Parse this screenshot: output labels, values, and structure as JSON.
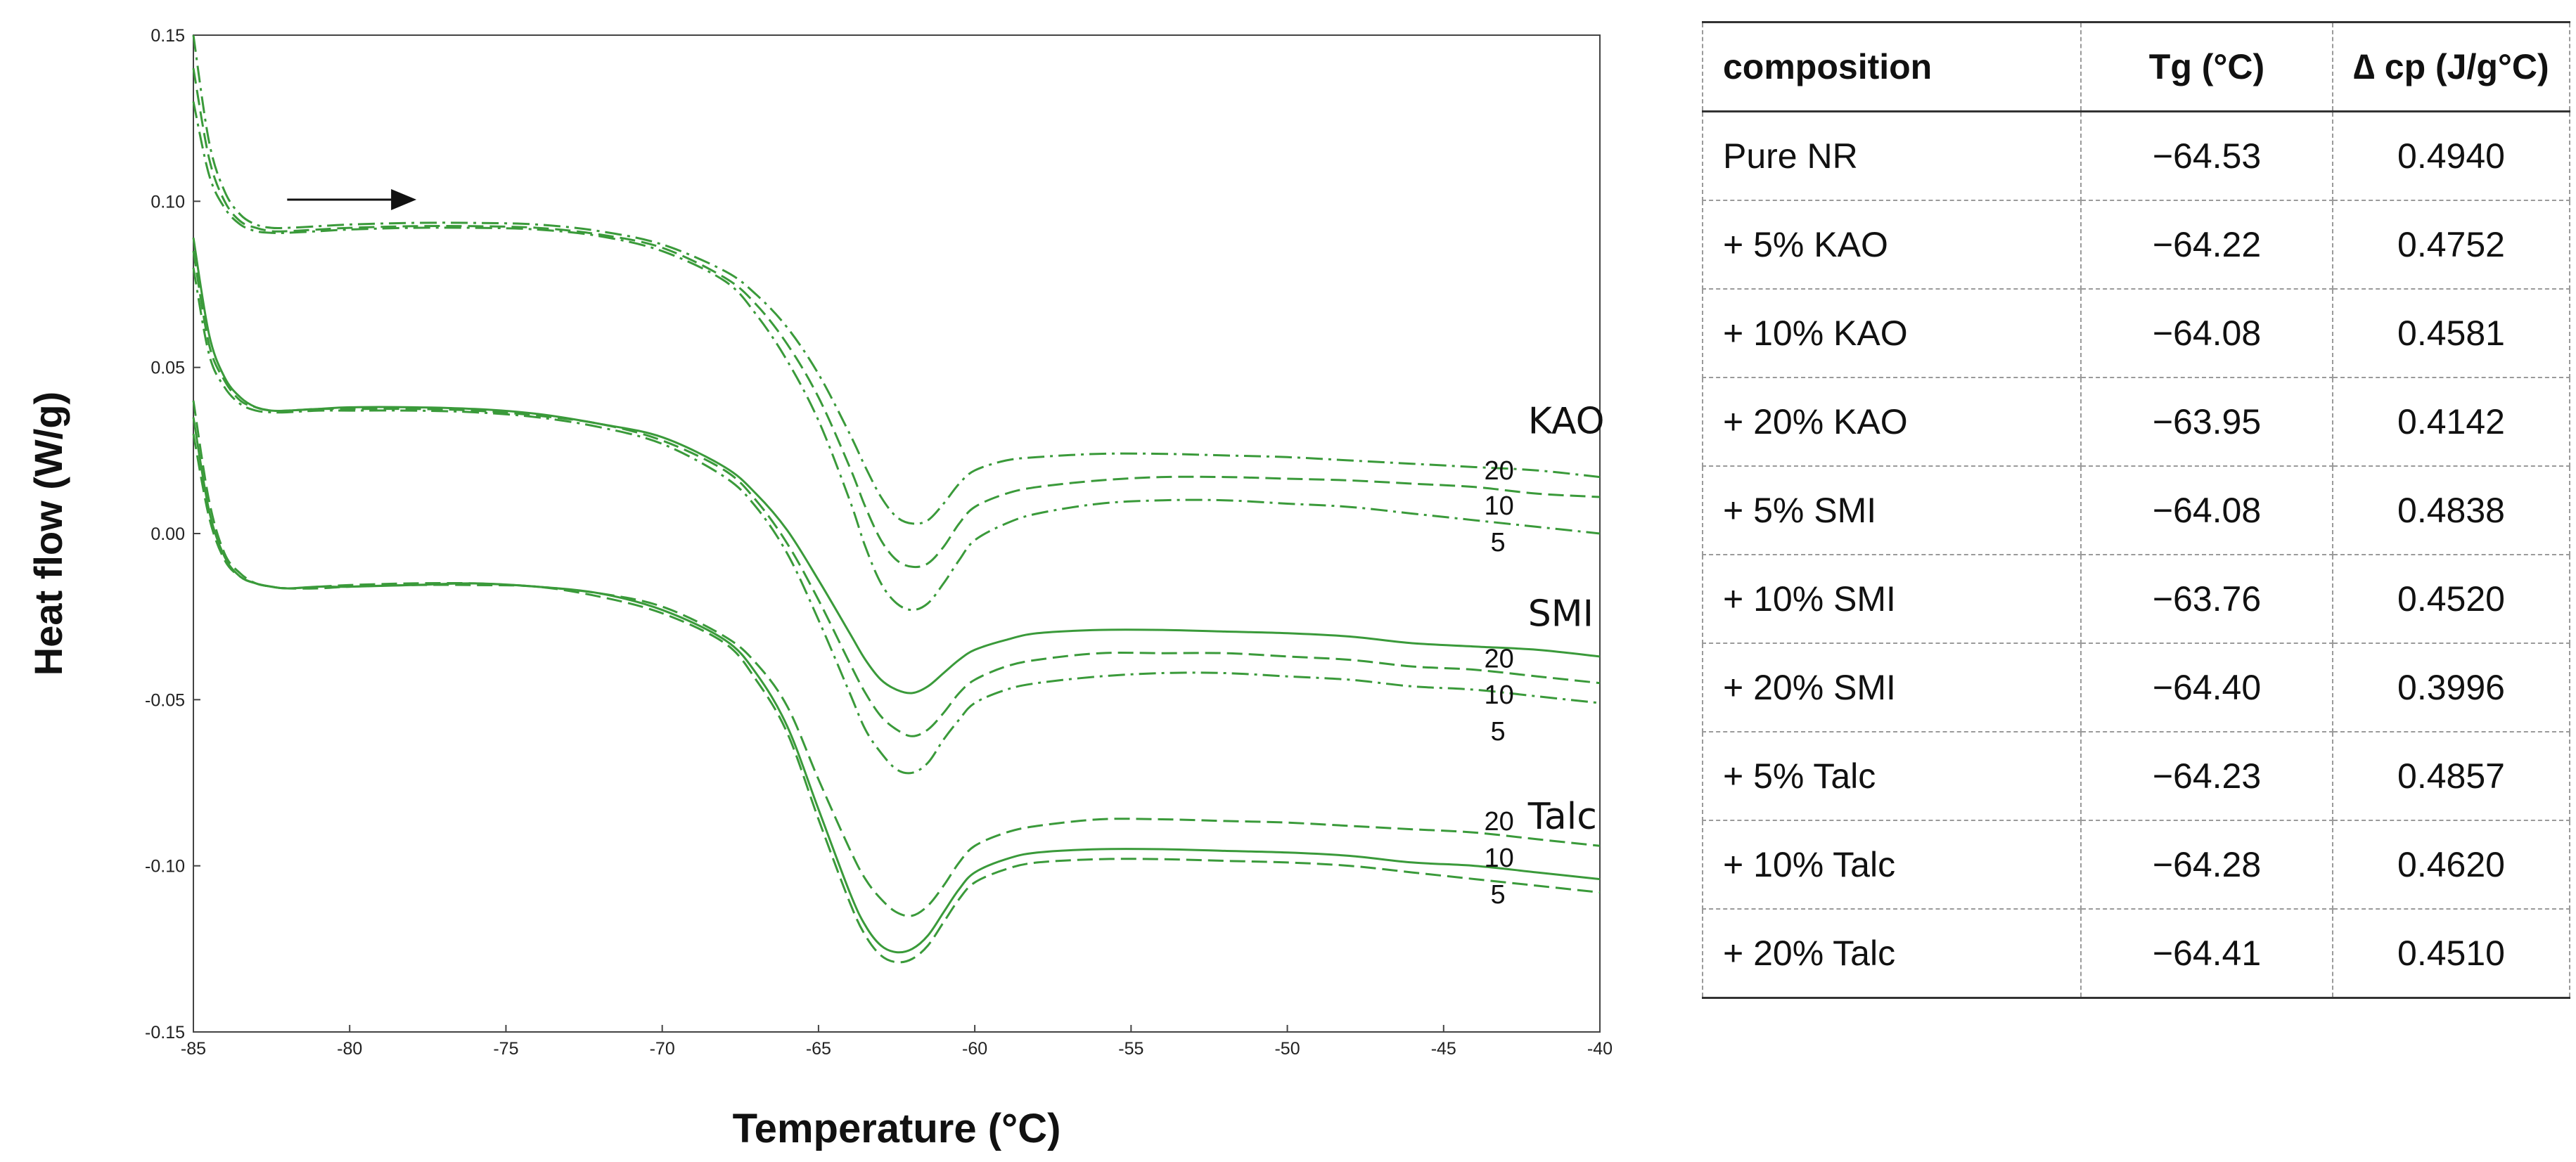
{
  "chart_data": {
    "type": "line",
    "title": "",
    "xlabel": "Temperature (°C)",
    "ylabel": "Heat flow (W/g)",
    "xlim": [
      -85,
      -40
    ],
    "ylim": [
      -0.15,
      0.15
    ],
    "x_ticks": [
      -85,
      -80,
      -75,
      -70,
      -65,
      -60,
      -55,
      -50,
      -45,
      -40
    ],
    "x_tick_labels": [
      "-85",
      "-80",
      "-75",
      "-70",
      "-65",
      "-60",
      "-55",
      "-50",
      "-45",
      "-40"
    ],
    "y_ticks": [
      -0.15,
      -0.1,
      -0.05,
      0.0,
      0.05,
      0.1,
      0.15
    ],
    "y_tick_labels": [
      "-0.15",
      "-0.10",
      "-0.05",
      "0.00",
      "0.05",
      "0.10",
      "0.15"
    ],
    "color": "#3a9a3a",
    "arrow": {
      "x_start": -82,
      "x_end": -78,
      "y": 0.1005
    },
    "groups": [
      {
        "name": "KAO",
        "label_pos": {
          "x": -42.3,
          "y": 0.034
        }
      },
      {
        "name": "SMI",
        "label_pos": {
          "x": -42.3,
          "y": -0.024
        }
      },
      {
        "name": "Talc",
        "label_pos": {
          "x": -42.3,
          "y": -0.085
        }
      }
    ],
    "series": [
      {
        "name": "KAO 20",
        "group": "KAO",
        "dash": "dashdot",
        "x": [
          -85,
          -84.5,
          -84,
          -83.5,
          -83,
          -82.5,
          -82,
          -81,
          -80,
          -78,
          -76,
          -74,
          -72,
          -70,
          -68,
          -67,
          -66,
          -65,
          -64,
          -63.5,
          -63,
          -62.5,
          -62,
          -61.5,
          -61,
          -60.5,
          -60,
          -59,
          -58,
          -56,
          -54,
          -52,
          -50,
          -48,
          -46,
          -44,
          -42,
          -40
        ],
        "y": [
          0.15,
          0.118,
          0.103,
          0.096,
          0.093,
          0.092,
          0.092,
          0.0925,
          0.093,
          0.0935,
          0.0935,
          0.093,
          0.091,
          0.087,
          0.079,
          0.072,
          0.062,
          0.048,
          0.03,
          0.02,
          0.011,
          0.005,
          0.003,
          0.004,
          0.009,
          0.015,
          0.019,
          0.022,
          0.023,
          0.024,
          0.024,
          0.0235,
          0.023,
          0.022,
          0.021,
          0.02,
          0.019,
          0.017
        ]
      },
      {
        "name": "KAO 10",
        "group": "KAO",
        "dash": "longdash",
        "x": [
          -85,
          -84.5,
          -84,
          -83.5,
          -83,
          -82.5,
          -82,
          -81,
          -80,
          -78,
          -76,
          -74,
          -72,
          -70,
          -68,
          -67,
          -66,
          -65,
          -64,
          -63.5,
          -63,
          -62.5,
          -62,
          -61.5,
          -61,
          -60.5,
          -60,
          -59,
          -58,
          -56,
          -54,
          -52,
          -50,
          -48,
          -46,
          -44,
          -42,
          -40
        ],
        "y": [
          0.14,
          0.113,
          0.1,
          0.094,
          0.092,
          0.091,
          0.091,
          0.0915,
          0.092,
          0.0925,
          0.0925,
          0.092,
          0.09,
          0.086,
          0.077,
          0.069,
          0.057,
          0.041,
          0.02,
          0.008,
          -0.002,
          -0.008,
          -0.01,
          -0.009,
          -0.004,
          0.003,
          0.008,
          0.012,
          0.014,
          0.016,
          0.017,
          0.017,
          0.0165,
          0.016,
          0.015,
          0.014,
          0.012,
          0.011
        ]
      },
      {
        "name": "KAO 5",
        "group": "KAO",
        "dash": "dashdot",
        "x": [
          -85,
          -84.5,
          -84,
          -83.5,
          -83,
          -82.5,
          -82,
          -81,
          -80,
          -78,
          -76,
          -74,
          -72,
          -70,
          -68,
          -67,
          -66,
          -65,
          -64,
          -63.5,
          -63,
          -62.5,
          -62,
          -61.5,
          -61,
          -60.5,
          -60,
          -59,
          -58,
          -56,
          -54,
          -52,
          -50,
          -48,
          -46,
          -44,
          -42,
          -40
        ],
        "y": [
          0.13,
          0.108,
          0.098,
          0.093,
          0.091,
          0.0905,
          0.0905,
          0.091,
          0.0915,
          0.092,
          0.092,
          0.0915,
          0.0895,
          0.085,
          0.076,
          0.066,
          0.052,
          0.034,
          0.01,
          -0.004,
          -0.015,
          -0.021,
          -0.023,
          -0.021,
          -0.015,
          -0.008,
          -0.002,
          0.003,
          0.006,
          0.009,
          0.01,
          0.01,
          0.009,
          0.008,
          0.006,
          0.004,
          0.002,
          0.0
        ]
      },
      {
        "name": "SMI 20",
        "group": "SMI",
        "dash": "solid",
        "x": [
          -85,
          -84.5,
          -84,
          -83.5,
          -83,
          -82.5,
          -82,
          -81,
          -80,
          -78,
          -76,
          -74,
          -72,
          -70,
          -68,
          -67,
          -66,
          -65,
          -64,
          -63.5,
          -63,
          -62.5,
          -62,
          -61.5,
          -61,
          -60.5,
          -60,
          -59,
          -58,
          -56,
          -54,
          -52,
          -50,
          -48,
          -46,
          -44,
          -42,
          -40
        ],
        "y": [
          0.089,
          0.06,
          0.047,
          0.041,
          0.038,
          0.037,
          0.037,
          0.0375,
          0.038,
          0.038,
          0.0375,
          0.036,
          0.033,
          0.029,
          0.02,
          0.012,
          0.001,
          -0.014,
          -0.03,
          -0.038,
          -0.044,
          -0.047,
          -0.048,
          -0.046,
          -0.042,
          -0.038,
          -0.035,
          -0.032,
          -0.03,
          -0.029,
          -0.029,
          -0.0295,
          -0.03,
          -0.031,
          -0.033,
          -0.034,
          -0.035,
          -0.037
        ]
      },
      {
        "name": "SMI 10",
        "group": "SMI",
        "dash": "longdash",
        "x": [
          -85,
          -84.5,
          -84,
          -83.5,
          -83,
          -82.5,
          -82,
          -81,
          -80,
          -78,
          -76,
          -74,
          -72,
          -70,
          -68,
          -67,
          -66,
          -65,
          -64,
          -63.5,
          -63,
          -62.5,
          -62,
          -61.5,
          -61,
          -60.5,
          -60,
          -59,
          -58,
          -56,
          -54,
          -52,
          -50,
          -48,
          -46,
          -44,
          -42,
          -40
        ],
        "y": [
          0.085,
          0.057,
          0.046,
          0.04,
          0.038,
          0.037,
          0.037,
          0.0375,
          0.0375,
          0.0375,
          0.037,
          0.0355,
          0.033,
          0.028,
          0.019,
          0.01,
          -0.003,
          -0.02,
          -0.039,
          -0.048,
          -0.055,
          -0.059,
          -0.061,
          -0.059,
          -0.054,
          -0.048,
          -0.044,
          -0.04,
          -0.038,
          -0.036,
          -0.036,
          -0.036,
          -0.037,
          -0.038,
          -0.04,
          -0.041,
          -0.043,
          -0.045
        ]
      },
      {
        "name": "SMI 5",
        "group": "SMI",
        "dash": "dashdot",
        "x": [
          -85,
          -84.5,
          -84,
          -83.5,
          -83,
          -82.5,
          -82,
          -81,
          -80,
          -78,
          -76,
          -74,
          -72,
          -70,
          -68,
          -67,
          -66,
          -65,
          -64,
          -63.5,
          -63,
          -62.5,
          -62,
          -61.5,
          -61,
          -60.5,
          -60,
          -59,
          -58,
          -56,
          -54,
          -52,
          -50,
          -48,
          -46,
          -44,
          -42,
          -40
        ],
        "y": [
          0.08,
          0.054,
          0.044,
          0.039,
          0.037,
          0.0365,
          0.0365,
          0.037,
          0.037,
          0.037,
          0.0365,
          0.035,
          0.032,
          0.027,
          0.017,
          0.008,
          -0.006,
          -0.026,
          -0.048,
          -0.059,
          -0.066,
          -0.071,
          -0.072,
          -0.069,
          -0.062,
          -0.056,
          -0.051,
          -0.047,
          -0.045,
          -0.043,
          -0.042,
          -0.042,
          -0.043,
          -0.044,
          -0.046,
          -0.047,
          -0.049,
          -0.051
        ]
      },
      {
        "name": "Talc 20",
        "group": "Talc",
        "dash": "longdash",
        "x": [
          -85,
          -84.5,
          -84,
          -83.5,
          -83,
          -82.5,
          -82,
          -81,
          -80,
          -78,
          -76,
          -74,
          -72,
          -70,
          -68,
          -67,
          -66,
          -65,
          -64,
          -63.5,
          -63,
          -62.5,
          -62,
          -61.5,
          -61,
          -60.5,
          -60,
          -59,
          -58,
          -56,
          -54,
          -52,
          -50,
          -48,
          -46,
          -44,
          -42,
          -40
        ],
        "y": [
          0.04,
          0.01,
          -0.006,
          -0.012,
          -0.015,
          -0.016,
          -0.0165,
          -0.016,
          -0.0155,
          -0.015,
          -0.015,
          -0.016,
          -0.018,
          -0.022,
          -0.031,
          -0.039,
          -0.052,
          -0.074,
          -0.095,
          -0.104,
          -0.11,
          -0.114,
          -0.115,
          -0.112,
          -0.106,
          -0.099,
          -0.094,
          -0.09,
          -0.088,
          -0.086,
          -0.086,
          -0.0865,
          -0.087,
          -0.088,
          -0.089,
          -0.09,
          -0.092,
          -0.094
        ]
      },
      {
        "name": "Talc 10",
        "group": "Talc",
        "dash": "solid",
        "x": [
          -85,
          -84.5,
          -84,
          -83.5,
          -83,
          -82.5,
          -82,
          -81,
          -80,
          -78,
          -76,
          -74,
          -72,
          -70,
          -68,
          -67,
          -66,
          -65,
          -64,
          -63.5,
          -63,
          -62.5,
          -62,
          -61.5,
          -61,
          -60.5,
          -60,
          -59,
          -58,
          -56,
          -54,
          -52,
          -50,
          -48,
          -46,
          -44,
          -42,
          -40
        ],
        "y": [
          0.035,
          0.007,
          -0.007,
          -0.013,
          -0.015,
          -0.016,
          -0.0165,
          -0.016,
          -0.016,
          -0.0155,
          -0.015,
          -0.016,
          -0.018,
          -0.023,
          -0.032,
          -0.042,
          -0.058,
          -0.083,
          -0.108,
          -0.118,
          -0.124,
          -0.126,
          -0.125,
          -0.121,
          -0.114,
          -0.107,
          -0.102,
          -0.098,
          -0.096,
          -0.095,
          -0.095,
          -0.0955,
          -0.096,
          -0.097,
          -0.099,
          -0.1,
          -0.102,
          -0.104
        ]
      },
      {
        "name": "Talc 5",
        "group": "Talc",
        "dash": "longdash",
        "x": [
          -85,
          -84.5,
          -84,
          -83.5,
          -83,
          -82.5,
          -82,
          -81,
          -80,
          -78,
          -76,
          -74,
          -72,
          -70,
          -68,
          -67,
          -66,
          -65,
          -64,
          -63.5,
          -63,
          -62.5,
          -62,
          -61.5,
          -61,
          -60.5,
          -60,
          -59,
          -58,
          -56,
          -54,
          -52,
          -50,
          -48,
          -46,
          -44,
          -42,
          -40
        ],
        "y": [
          0.03,
          0.005,
          -0.008,
          -0.013,
          -0.015,
          -0.016,
          -0.0165,
          -0.0165,
          -0.016,
          -0.0155,
          -0.0155,
          -0.016,
          -0.019,
          -0.024,
          -0.033,
          -0.044,
          -0.06,
          -0.086,
          -0.111,
          -0.121,
          -0.127,
          -0.129,
          -0.128,
          -0.124,
          -0.117,
          -0.11,
          -0.105,
          -0.101,
          -0.099,
          -0.098,
          -0.098,
          -0.0985,
          -0.099,
          -0.1,
          -0.102,
          -0.104,
          -0.106,
          -0.108
        ]
      }
    ],
    "curve_labels": [
      {
        "text": "20",
        "x": -43.7,
        "y": 0.019
      },
      {
        "text": "10",
        "x": -43.7,
        "y": 0.0085
      },
      {
        "text": "5",
        "x": -43.5,
        "y": -0.0025
      },
      {
        "text": "20",
        "x": -43.7,
        "y": -0.0375
      },
      {
        "text": "10",
        "x": -43.7,
        "y": -0.0485
      },
      {
        "text": "5",
        "x": -43.5,
        "y": -0.0595
      },
      {
        "text": "20",
        "x": -43.7,
        "y": -0.0865
      },
      {
        "text": "10",
        "x": -43.7,
        "y": -0.0975
      },
      {
        "text": "5",
        "x": -43.5,
        "y": -0.1085
      }
    ]
  },
  "table": {
    "headers": [
      "composition",
      "Tg (°C)",
      "∆ cp (J/g°C)"
    ],
    "rows": [
      [
        "Pure NR",
        "−64.53",
        "0.4940"
      ],
      [
        "+ 5% KAO",
        "−64.22",
        "0.4752"
      ],
      [
        "+ 10% KAO",
        "−64.08",
        "0.4581"
      ],
      [
        "+ 20% KAO",
        "−63.95",
        "0.4142"
      ],
      [
        "+ 5% SMI",
        "−64.08",
        "0.4838"
      ],
      [
        "+ 10% SMI",
        "−63.76",
        "0.4520"
      ],
      [
        "+ 20% SMI",
        "−64.40",
        "0.3996"
      ],
      [
        "+ 5% Talc",
        "−64.23",
        "0.4857"
      ],
      [
        "+ 10% Talc",
        "−64.28",
        "0.4620"
      ],
      [
        "+ 20% Talc",
        "−64.41",
        "0.4510"
      ]
    ]
  }
}
